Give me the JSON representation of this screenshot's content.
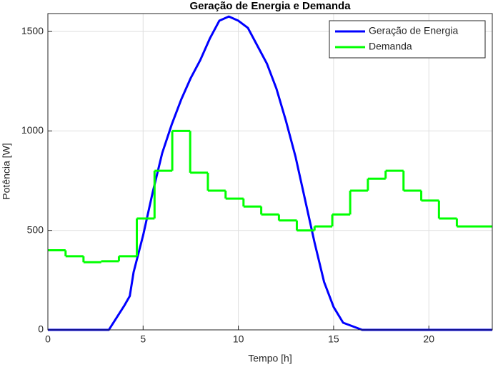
{
  "chart_data": {
    "type": "line",
    "title": "Geração de Energia e Demanda",
    "x_label": "Tempo [h]",
    "y_label": "Potência [W]",
    "xlim": [
      0,
      23.33
    ],
    "ylim": [
      0,
      1590
    ],
    "xticks": [
      0,
      5,
      10,
      15,
      20
    ],
    "yticks": [
      0,
      500,
      1000,
      1500
    ],
    "grid": true,
    "legend": "northeast",
    "series": [
      {
        "name": "Geração de Energia",
        "color": "#0000ff",
        "step": false,
        "x": [
          0,
          3.2,
          4,
          4.3,
          4.5,
          5,
          5.5,
          6,
          6.5,
          7,
          7.5,
          8,
          8.5,
          9,
          9.5,
          10,
          10.5,
          11,
          11.5,
          12,
          12.5,
          13,
          13.5,
          14,
          14.5,
          15,
          15.5,
          16.5,
          23.33
        ],
        "values": [
          0,
          0,
          120,
          170,
          290,
          475,
          690,
          888,
          1032,
          1158,
          1266,
          1356,
          1464,
          1554,
          1575,
          1554,
          1518,
          1428,
          1338,
          1212,
          1050,
          871,
          655,
          439,
          241,
          115,
          36,
          0,
          0
        ]
      },
      {
        "name": "Demanda",
        "color": "#00ff00",
        "step": true,
        "x": [
          0,
          0.93,
          1.87,
          2.8,
          3.73,
          4.67,
          5.6,
          6.53,
          7.47,
          8.4,
          9.33,
          10.27,
          11.2,
          12.13,
          13.07,
          14,
          14.93,
          15.87,
          16.8,
          17.73,
          18.67,
          19.6,
          20.53,
          21.47
        ],
        "values": [
          400,
          370,
          340,
          345,
          370,
          560,
          800,
          1000,
          790,
          700,
          660,
          620,
          580,
          550,
          500,
          520,
          580,
          700,
          760,
          800,
          700,
          650,
          560,
          520
        ]
      }
    ]
  }
}
